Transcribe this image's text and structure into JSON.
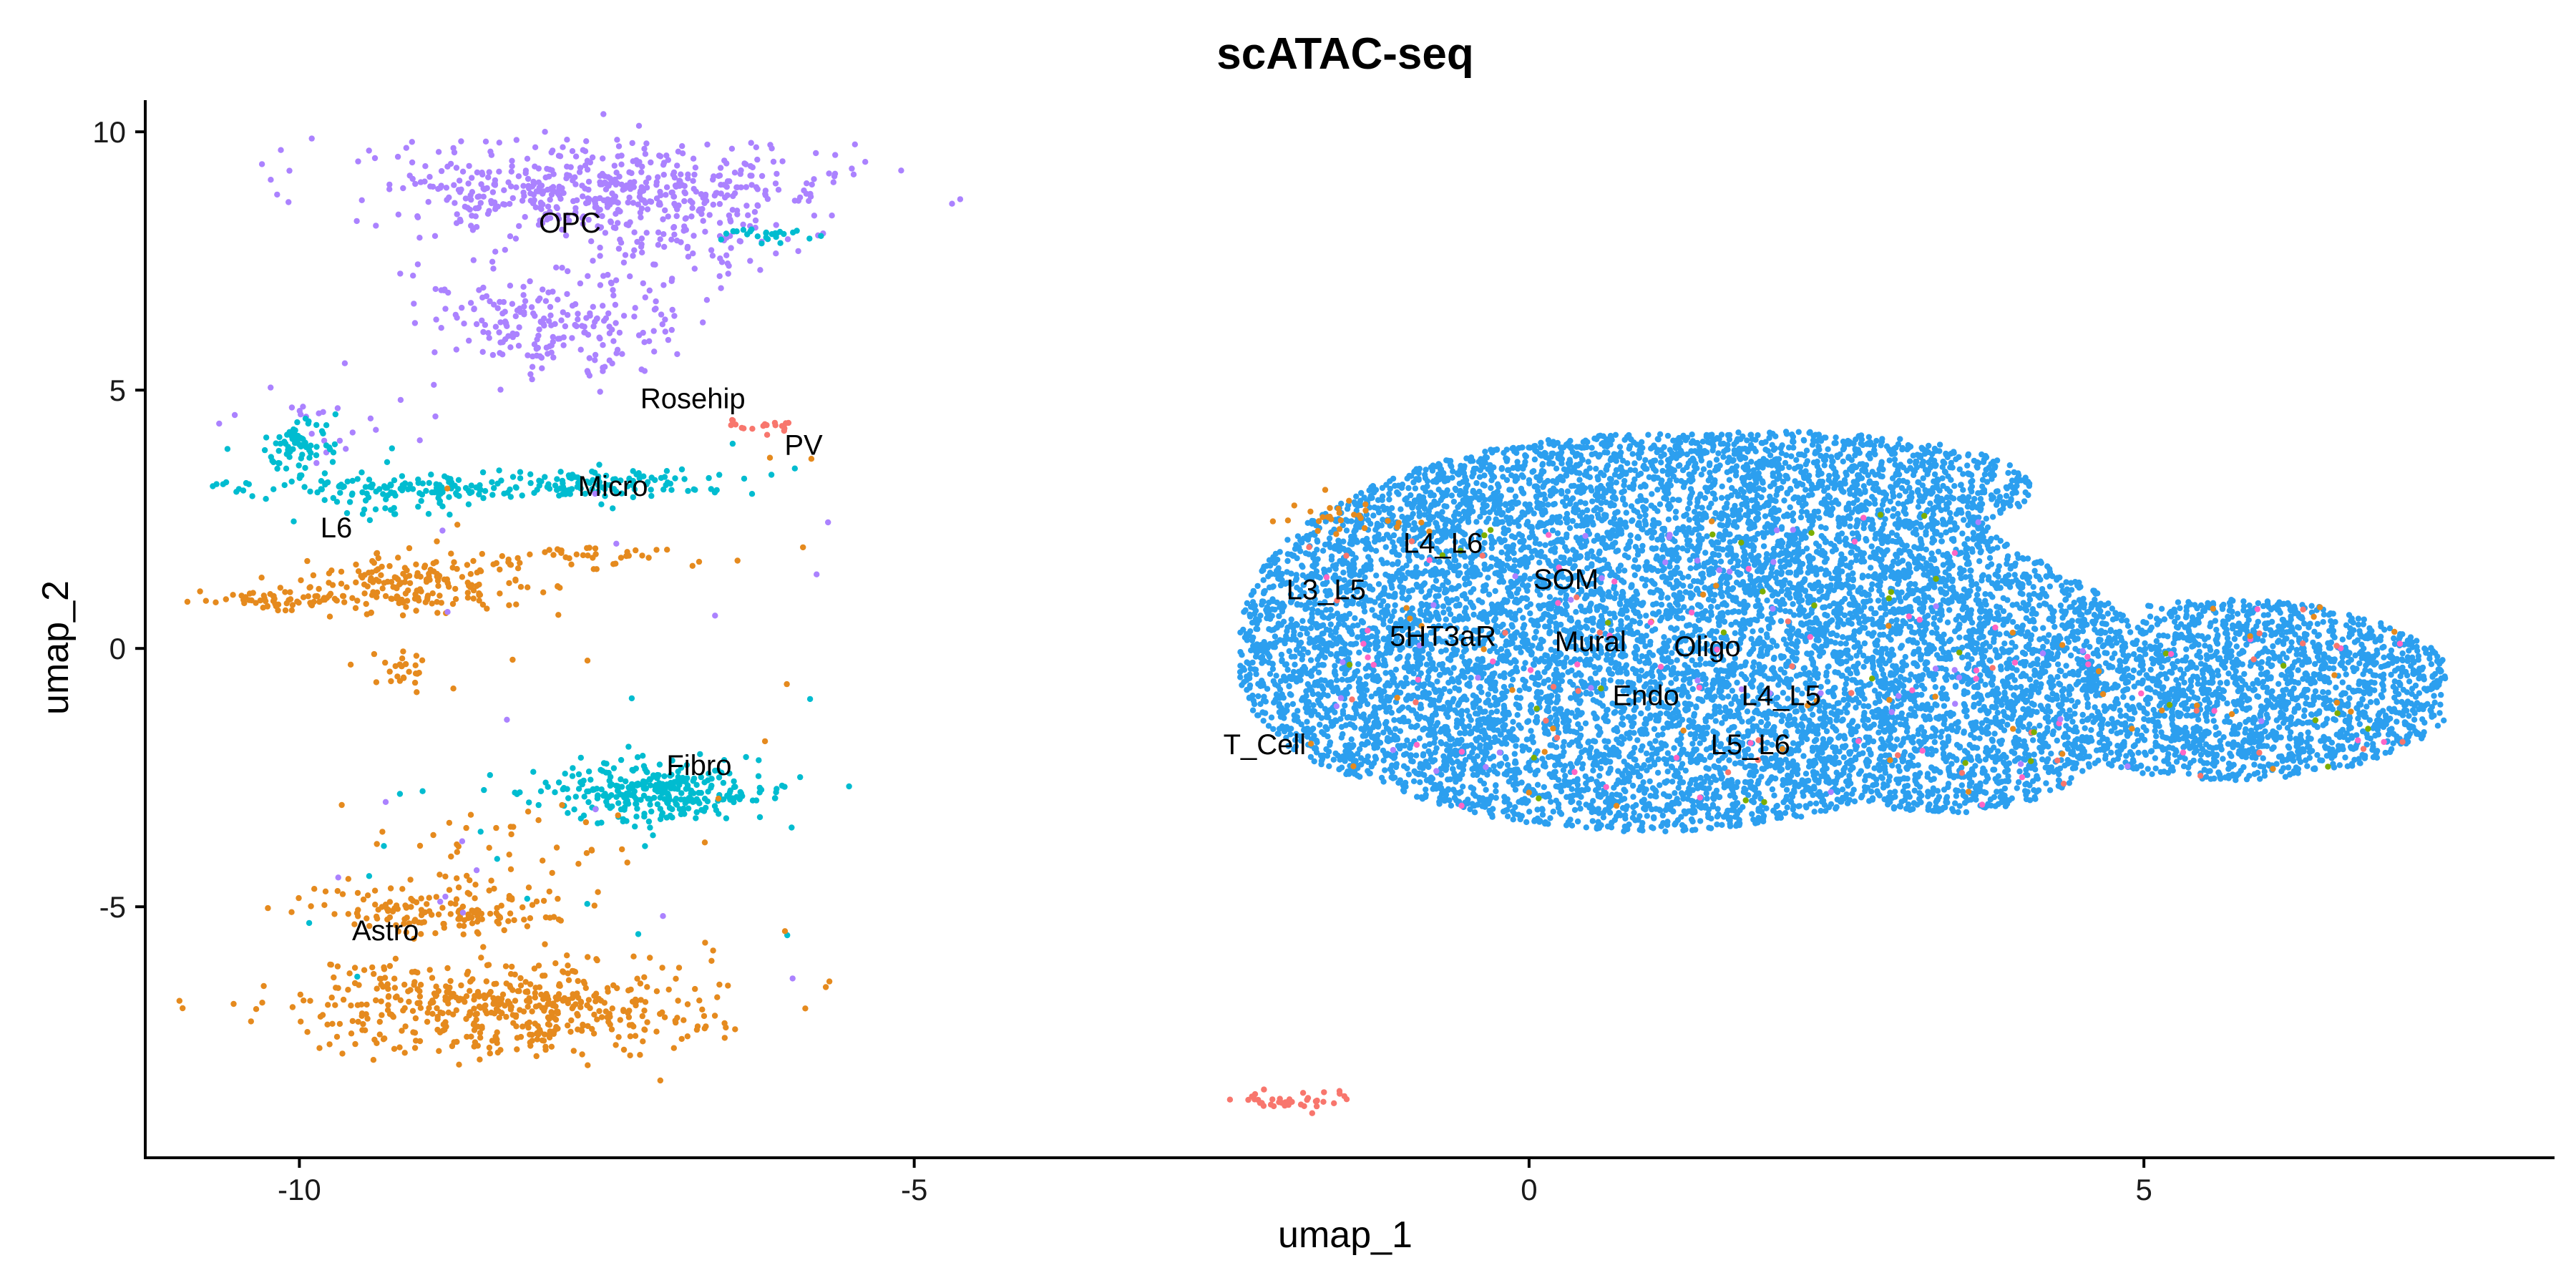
{
  "chart_data": {
    "type": "scatter",
    "title": "scATAC-seq",
    "xlabel": "umap_1",
    "ylabel": "umap_2",
    "xlim": [
      -11.3,
      8.3
    ],
    "ylim": [
      -9.8,
      10.5
    ],
    "xticks": [
      -10,
      -5,
      0,
      5
    ],
    "yticks": [
      10,
      5,
      0,
      -5
    ],
    "xtick_labels": [
      "-10",
      "-5",
      "0",
      "5"
    ],
    "ytick_labels": [
      "10",
      "5",
      "0",
      "-5"
    ],
    "grid": false,
    "legend": "none",
    "colors": {
      "main": "#2C9FEF",
      "opc": "#AB82FF",
      "astro": "#E58A1E",
      "micro": "#00BCD0",
      "pv": "#F8766D",
      "pink": "#FF66C6",
      "green": "#7CAE00"
    },
    "clusters": [
      {
        "name": "OPC",
        "color": "#AB82FF",
        "blobs": [
          {
            "cx": -7.55,
            "cy": 8.95,
            "sx": 0.95,
            "sy": 0.45,
            "n": 520
          },
          {
            "cx": -7.9,
            "cy": 6.35,
            "sx": 0.5,
            "sy": 0.55,
            "n": 230
          },
          {
            "cx": -6.9,
            "cy": 7.9,
            "sx": 0.55,
            "sy": 0.35,
            "n": 80
          },
          {
            "cx": -9.8,
            "cy": 4.4,
            "sx": 0.4,
            "sy": 0.3,
            "n": 25
          }
        ]
      },
      {
        "name": "Micro",
        "color": "#00BCD0",
        "blobs": [
          {
            "cx": -7.1,
            "cy": -2.75,
            "sx": 0.5,
            "sy": 0.3,
            "n": 320
          },
          {
            "cx": -8.8,
            "cy": 3.1,
            "sx": 0.8,
            "sy": 0.12,
            "n": 140
          },
          {
            "cx": -7.6,
            "cy": 3.2,
            "sx": 0.55,
            "sy": 0.15,
            "n": 90
          },
          {
            "cx": -10.0,
            "cy": 4.0,
            "sx": 0.15,
            "sy": 0.25,
            "n": 70
          },
          {
            "cx": -9.2,
            "cy": 2.8,
            "sx": 0.3,
            "sy": 0.2,
            "n": 40
          },
          {
            "cx": -6.2,
            "cy": 8.0,
            "sx": 0.2,
            "sy": 0.1,
            "n": 25
          }
        ]
      },
      {
        "name": "Astro",
        "color": "#E58A1E",
        "blobs": [
          {
            "cx": -8.3,
            "cy": -6.95,
            "sx": 0.85,
            "sy": 0.45,
            "n": 520
          },
          {
            "cx": -8.9,
            "cy": -5.05,
            "sx": 0.45,
            "sy": 0.25,
            "n": 150
          },
          {
            "cx": -9.0,
            "cy": 1.25,
            "sx": 0.45,
            "sy": 0.3,
            "n": 170
          },
          {
            "cx": -10.0,
            "cy": 0.95,
            "sx": 0.35,
            "sy": 0.12,
            "n": 70
          },
          {
            "cx": -7.8,
            "cy": 1.75,
            "sx": 0.6,
            "sy": 0.15,
            "n": 50
          },
          {
            "cx": -9.15,
            "cy": -0.4,
            "sx": 0.1,
            "sy": 0.2,
            "n": 25
          },
          {
            "cx": -8.2,
            "cy": -3.8,
            "sx": 0.5,
            "sy": 0.5,
            "n": 40
          }
        ]
      },
      {
        "name": "PV",
        "color": "#F8766D",
        "blobs": [
          {
            "cx": -6.3,
            "cy": 4.3,
            "sx": 0.18,
            "sy": 0.06,
            "n": 18
          },
          {
            "cx": -1.95,
            "cy": -8.75,
            "sx": 0.3,
            "sy": 0.1,
            "n": 40
          }
        ]
      }
    ],
    "main_cloud": {
      "color": "#2C9FEF",
      "n": 11500
    },
    "labels": [
      {
        "text": "OPC",
        "x": -7.8,
        "y": 8.05
      },
      {
        "text": "Rosehip",
        "x": -6.8,
        "y": 4.65
      },
      {
        "text": "PV",
        "x": -5.9,
        "y": 3.75
      },
      {
        "text": "Micro",
        "x": -7.45,
        "y": 2.95
      },
      {
        "text": "L6",
        "x": -9.7,
        "y": 2.15
      },
      {
        "text": "Fibro",
        "x": -6.75,
        "y": -2.45
      },
      {
        "text": "Astro",
        "x": -9.3,
        "y": -5.65
      },
      {
        "text": "L4_L6",
        "x": -0.7,
        "y": 1.85
      },
      {
        "text": "L3_L5",
        "x": -1.65,
        "y": 0.95
      },
      {
        "text": "SOM",
        "x": 0.3,
        "y": 1.15
      },
      {
        "text": "5HT3aR",
        "x": -0.7,
        "y": 0.05
      },
      {
        "text": "Mural",
        "x": 0.5,
        "y": -0.05
      },
      {
        "text": "Oligo",
        "x": 1.45,
        "y": -0.15
      },
      {
        "text": "Endo",
        "x": 0.95,
        "y": -1.1
      },
      {
        "text": "L4_L5",
        "x": 2.05,
        "y": -1.1
      },
      {
        "text": "T_Cell",
        "x": -2.15,
        "y": -2.05
      },
      {
        "text": "L5_L6",
        "x": 1.8,
        "y": -2.05
      }
    ]
  }
}
